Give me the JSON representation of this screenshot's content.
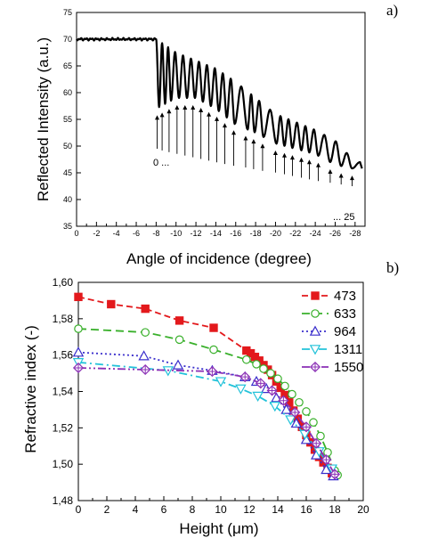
{
  "panel_a_label": "a)",
  "panel_b_label": "b)",
  "chart_data": [
    {
      "type": "line",
      "panel": "a)",
      "xlabel": "Angle of incidence (degree)",
      "ylabel": "Reflected Intensity (a.u.)",
      "xlim": [
        0,
        -29
      ],
      "ylim": [
        35,
        75
      ],
      "x_ticks": [
        0,
        -2,
        -4,
        -6,
        -8,
        -10,
        -12,
        -14,
        -16,
        -18,
        -20,
        -22,
        -24,
        -26,
        -28
      ],
      "y_ticks": [
        35,
        40,
        45,
        50,
        55,
        60,
        65,
        70,
        75
      ],
      "grid": false,
      "baseline_intensity": 70,
      "envelope_top": [
        [
          -8.0,
          70
        ],
        [
          -10,
          67.5
        ],
        [
          -12,
          66
        ],
        [
          -14,
          64.5
        ],
        [
          -16,
          62
        ],
        [
          -18,
          59
        ],
        [
          -20,
          56
        ],
        [
          -22,
          54.5
        ],
        [
          -24,
          53
        ],
        [
          -26,
          51
        ],
        [
          -28,
          47
        ]
      ],
      "envelope_bottom": [
        [
          -8.0,
          57
        ],
        [
          -10,
          59
        ],
        [
          -12,
          59
        ],
        [
          -14,
          57
        ],
        [
          -16,
          54
        ],
        [
          -18,
          52.5
        ],
        [
          -20,
          50.5
        ],
        [
          -22,
          49.5
        ],
        [
          -24,
          48.5
        ],
        [
          -26,
          46.5
        ],
        [
          -28.5,
          45.5
        ]
      ],
      "dip_angles": [
        -8.3,
        -8.9,
        -9.5,
        -10.3,
        -11.1,
        -11.9,
        -12.7,
        -13.5,
        -14.3,
        -15.1,
        -15.9,
        -17.2,
        -17.9,
        -18.8,
        -20.1,
        -20.9,
        -21.7,
        -22.6,
        -23.4,
        -24.3,
        -25.5,
        -26.6,
        -27.7
      ],
      "mode_arrow_angles": [
        -8.1,
        -8.6,
        -9.3,
        -10.1,
        -10.9,
        -11.7,
        -12.5,
        -13.3,
        -14.1,
        -14.9,
        -15.8,
        -17.0,
        -17.8,
        -18.7,
        -20.0,
        -20.9,
        -21.7,
        -22.6,
        -23.4,
        -24.3,
        -25.5,
        -26.6,
        -27.7
      ],
      "annotations": {
        "first_mode": "0 ...",
        "last_mode": "... 25"
      }
    },
    {
      "type": "line",
      "panel": "b)",
      "xlabel": "Height (μm)",
      "ylabel": "Refractive index (-)",
      "xlim": [
        0,
        20
      ],
      "ylim": [
        1.48,
        1.6
      ],
      "x_ticks": [
        "0",
        "2",
        "4",
        "6",
        "8",
        "10",
        "12",
        "14",
        "16",
        "18",
        "20"
      ],
      "y_ticks": [
        "1,48",
        "1,50",
        "1,52",
        "1,54",
        "1,56",
        "1,58",
        "1,60"
      ],
      "grid": false,
      "legend_placement": "top-right",
      "series": [
        {
          "name": "473",
          "color": "#e3191c",
          "marker": "square",
          "dash": "7,4",
          "points": [
            [
              0,
              1.592
            ],
            [
              2.3,
              1.588
            ],
            [
              4.7,
              1.5855
            ],
            [
              7.1,
              1.579
            ],
            [
              9.5,
              1.575
            ],
            [
              11.8,
              1.5625
            ],
            [
              12.1,
              1.561
            ],
            [
              12.4,
              1.559
            ],
            [
              12.7,
              1.557
            ],
            [
              13.0,
              1.5545
            ],
            [
              13.3,
              1.552
            ],
            [
              13.6,
              1.549
            ],
            [
              13.9,
              1.5455
            ],
            [
              14.2,
              1.542
            ],
            [
              14.5,
              1.538
            ],
            [
              14.8,
              1.534
            ],
            [
              15.1,
              1.5295
            ],
            [
              15.4,
              1.525
            ],
            [
              15.7,
              1.5205
            ],
            [
              16.0,
              1.516
            ],
            [
              16.3,
              1.512
            ],
            [
              16.6,
              1.508
            ],
            [
              16.9,
              1.504
            ],
            [
              17.2,
              1.501
            ],
            [
              17.5,
              1.498
            ],
            [
              17.8,
              1.495
            ]
          ]
        },
        {
          "name": "633",
          "color": "#39b02b",
          "marker": "circle",
          "dash": "9,5",
          "points": [
            [
              0,
              1.5745
            ],
            [
              4.7,
              1.5725
            ],
            [
              7.1,
              1.5685
            ],
            [
              9.5,
              1.563
            ],
            [
              11.8,
              1.5575
            ],
            [
              12.5,
              1.555
            ],
            [
              13.0,
              1.5525
            ],
            [
              13.5,
              1.55
            ],
            [
              14.0,
              1.547
            ],
            [
              14.5,
              1.543
            ],
            [
              15.0,
              1.5385
            ],
            [
              15.5,
              1.534
            ],
            [
              16.0,
              1.529
            ],
            [
              16.5,
              1.523
            ],
            [
              17.0,
              1.5155
            ],
            [
              17.5,
              1.5065
            ],
            [
              18.0,
              1.4965
            ],
            [
              18.2,
              1.494
            ]
          ]
        },
        {
          "name": "964",
          "color": "#3a2ecc",
          "marker": "triangle-up",
          "dash": "2,3",
          "points": [
            [
              0,
              1.5615
            ],
            [
              4.6,
              1.5595
            ],
            [
              7.0,
              1.5545
            ],
            [
              9.4,
              1.5515
            ],
            [
              11.7,
              1.548
            ],
            [
              12.5,
              1.5455
            ],
            [
              13.2,
              1.5415
            ],
            [
              13.9,
              1.5365
            ],
            [
              14.6,
              1.53
            ],
            [
              15.3,
              1.5225
            ],
            [
              16.0,
              1.5135
            ],
            [
              16.7,
              1.505
            ],
            [
              17.4,
              1.497
            ],
            [
              17.9,
              1.4935
            ]
          ]
        },
        {
          "name": "1311",
          "color": "#22c2d9",
          "marker": "triangle-down",
          "dash": "9,4,2,4",
          "points": [
            [
              0,
              1.556
            ],
            [
              6.3,
              1.5515
            ],
            [
              10.0,
              1.5455
            ],
            [
              11.4,
              1.5415
            ],
            [
              12.6,
              1.5375
            ],
            [
              13.8,
              1.532
            ],
            [
              14.9,
              1.5245
            ],
            [
              15.9,
              1.5165
            ],
            [
              16.9,
              1.507
            ],
            [
              17.8,
              1.4975
            ]
          ]
        },
        {
          "name": "1550",
          "color": "#8a2fb5",
          "marker": "diamond-cross",
          "dash": "9,3,2,3,2,3",
          "points": [
            [
              0,
              1.553
            ],
            [
              4.7,
              1.552
            ],
            [
              9.4,
              1.551
            ],
            [
              11.7,
              1.548
            ],
            [
              12.8,
              1.5445
            ],
            [
              13.6,
              1.5405
            ],
            [
              14.4,
              1.535
            ],
            [
              15.2,
              1.5285
            ],
            [
              16.0,
              1.5205
            ],
            [
              16.7,
              1.5115
            ],
            [
              17.4,
              1.5025
            ],
            [
              18.0,
              1.4945
            ]
          ]
        }
      ]
    }
  ]
}
